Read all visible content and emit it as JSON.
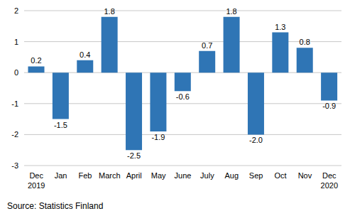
{
  "chart_data": {
    "type": "bar",
    "categories": [
      "Dec 2019",
      "Jan",
      "Feb",
      "March",
      "April",
      "May",
      "June",
      "July",
      "Aug",
      "Sep",
      "Oct",
      "Nov",
      "Dec 2020"
    ],
    "values": [
      0.2,
      -1.5,
      0.4,
      1.8,
      -2.5,
      -1.9,
      -0.6,
      0.7,
      1.8,
      -2.0,
      1.3,
      0.8,
      -0.9
    ],
    "value_labels": [
      "0.2",
      "-1.5",
      "0.4",
      "1.8",
      "-2.5",
      "-1.9",
      "-0.6",
      "0.7",
      "1.8",
      "-2.0",
      "1.3",
      "0.8",
      "-0.9"
    ],
    "color": "#2f75b5",
    "ylim": [
      -3,
      2
    ],
    "yticks": [
      -3,
      -2,
      -1,
      0,
      1,
      2
    ],
    "grid": true,
    "data_labels": true,
    "source": "Source: Statistics Finland"
  }
}
